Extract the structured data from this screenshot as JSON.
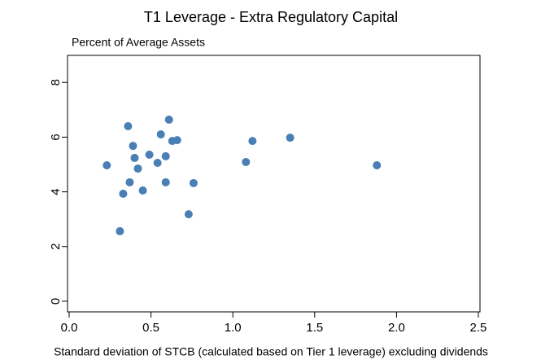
{
  "chart_data": {
    "type": "scatter",
    "title": "T1 Leverage - Extra Regulatory Capital",
    "subtitle": "Percent of Average Assets",
    "x_label": "Standard deviation of STCB (calculated based on Tier 1 leverage) excluding dividends",
    "color": "#4a7fb5",
    "x": [
      0.23,
      0.31,
      0.33,
      0.36,
      0.37,
      0.39,
      0.4,
      0.42,
      0.45,
      0.49,
      0.54,
      0.56,
      0.59,
      0.59,
      0.61,
      0.63,
      0.66,
      0.73,
      0.76,
      1.08,
      1.12,
      1.35,
      1.88
    ],
    "values": [
      4.97,
      2.56,
      3.93,
      6.4,
      4.35,
      5.68,
      5.24,
      4.85,
      4.05,
      5.36,
      5.06,
      6.1,
      4.35,
      5.3,
      6.64,
      5.86,
      5.89,
      3.18,
      4.32,
      5.09,
      5.86,
      5.98,
      4.97
    ],
    "xlim": [
      -0.01,
      2.51
    ],
    "ylim": [
      -0.39,
      8.99
    ],
    "xticks": [
      {
        "value": 0,
        "label": "0.0"
      },
      0.5,
      {
        "value": 1,
        "label": "1.0"
      },
      1.5,
      {
        "value": 2,
        "label": "2.0"
      },
      2.5
    ],
    "yticks": [
      0,
      2,
      4,
      6,
      8
    ]
  }
}
